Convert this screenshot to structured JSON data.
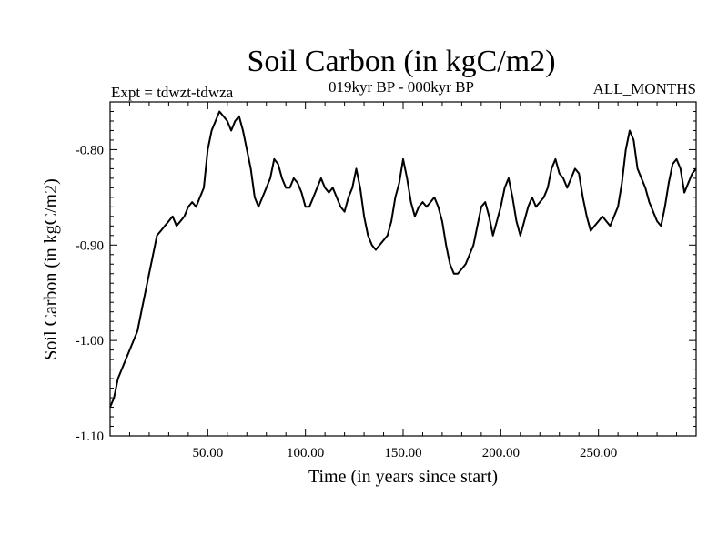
{
  "chart_data": {
    "type": "line",
    "title": "Soil Carbon (in kgC/m2)",
    "subtitle": "019kyr BP - 000kyr BP",
    "left_note": "Expt = tdwzt-tdwza",
    "right_note": "ALL_MONTHS",
    "xlabel": "Time (in years since start)",
    "ylabel": "Soil Carbon (in kgC/m2)",
    "xlim": [
      0,
      300
    ],
    "ylim": [
      -1.1,
      -0.75
    ],
    "xticks": [
      50,
      100,
      150,
      200,
      250
    ],
    "xtick_labels": [
      "50.00",
      "100.00",
      "150.00",
      "200.00",
      "250.00"
    ],
    "yticks": [
      -0.8,
      -0.9,
      -1.0,
      -1.1
    ],
    "ytick_labels": [
      "-0.80",
      "-0.90",
      "-1.00",
      "-1.10"
    ],
    "grid": false,
    "series_color": "#000000",
    "x": [
      0,
      2,
      4,
      6,
      8,
      10,
      12,
      14,
      16,
      18,
      20,
      22,
      24,
      26,
      28,
      30,
      32,
      34,
      36,
      38,
      40,
      42,
      44,
      46,
      48,
      50,
      52,
      54,
      56,
      58,
      60,
      62,
      64,
      66,
      68,
      70,
      72,
      74,
      76,
      78,
      80,
      82,
      84,
      86,
      88,
      90,
      92,
      94,
      96,
      98,
      100,
      102,
      104,
      106,
      108,
      110,
      112,
      114,
      116,
      118,
      120,
      122,
      124,
      126,
      128,
      130,
      132,
      134,
      136,
      138,
      140,
      142,
      144,
      146,
      148,
      150,
      152,
      154,
      156,
      158,
      160,
      162,
      164,
      166,
      168,
      170,
      172,
      174,
      176,
      178,
      180,
      182,
      184,
      186,
      188,
      190,
      192,
      194,
      196,
      198,
      200,
      202,
      204,
      206,
      208,
      210,
      212,
      214,
      216,
      218,
      220,
      222,
      224,
      226,
      228,
      230,
      232,
      234,
      236,
      238,
      240,
      242,
      244,
      246,
      248,
      250,
      252,
      254,
      256,
      258,
      260,
      262,
      264,
      266,
      268,
      270,
      272,
      274,
      276,
      278,
      280,
      282,
      284,
      286,
      288,
      290,
      292,
      294,
      296,
      298,
      300
    ],
    "values": [
      -1.07,
      -1.06,
      -1.04,
      -1.03,
      -1.02,
      -1.01,
      -1.0,
      -0.99,
      -0.97,
      -0.95,
      -0.93,
      -0.91,
      -0.89,
      -0.885,
      -0.88,
      -0.875,
      -0.87,
      -0.88,
      -0.875,
      -0.87,
      -0.86,
      -0.855,
      -0.86,
      -0.85,
      -0.84,
      -0.8,
      -0.78,
      -0.77,
      -0.76,
      -0.765,
      -0.77,
      -0.78,
      -0.77,
      -0.765,
      -0.78,
      -0.8,
      -0.82,
      -0.85,
      -0.86,
      -0.85,
      -0.84,
      -0.83,
      -0.81,
      -0.815,
      -0.83,
      -0.84,
      -0.84,
      -0.83,
      -0.835,
      -0.845,
      -0.86,
      -0.86,
      -0.85,
      -0.84,
      -0.83,
      -0.84,
      -0.845,
      -0.84,
      -0.85,
      -0.86,
      -0.865,
      -0.85,
      -0.84,
      -0.82,
      -0.84,
      -0.87,
      -0.89,
      -0.9,
      -0.905,
      -0.9,
      -0.895,
      -0.89,
      -0.875,
      -0.85,
      -0.835,
      -0.81,
      -0.83,
      -0.855,
      -0.87,
      -0.86,
      -0.855,
      -0.86,
      -0.855,
      -0.85,
      -0.86,
      -0.875,
      -0.9,
      -0.92,
      -0.93,
      -0.93,
      -0.925,
      -0.92,
      -0.91,
      -0.9,
      -0.88,
      -0.86,
      -0.855,
      -0.87,
      -0.89,
      -0.875,
      -0.86,
      -0.84,
      -0.83,
      -0.85,
      -0.875,
      -0.89,
      -0.875,
      -0.86,
      -0.85,
      -0.86,
      -0.855,
      -0.85,
      -0.84,
      -0.82,
      -0.81,
      -0.825,
      -0.83,
      -0.84,
      -0.83,
      -0.82,
      -0.825,
      -0.85,
      -0.87,
      -0.885,
      -0.88,
      -0.875,
      -0.87,
      -0.875,
      -0.88,
      -0.87,
      -0.86,
      -0.835,
      -0.8,
      -0.78,
      -0.79,
      -0.82,
      -0.83,
      -0.84,
      -0.855,
      -0.865,
      -0.875,
      -0.88,
      -0.86,
      -0.835,
      -0.815,
      -0.81,
      -0.82,
      -0.845,
      -0.835,
      -0.825,
      -0.82
    ]
  }
}
